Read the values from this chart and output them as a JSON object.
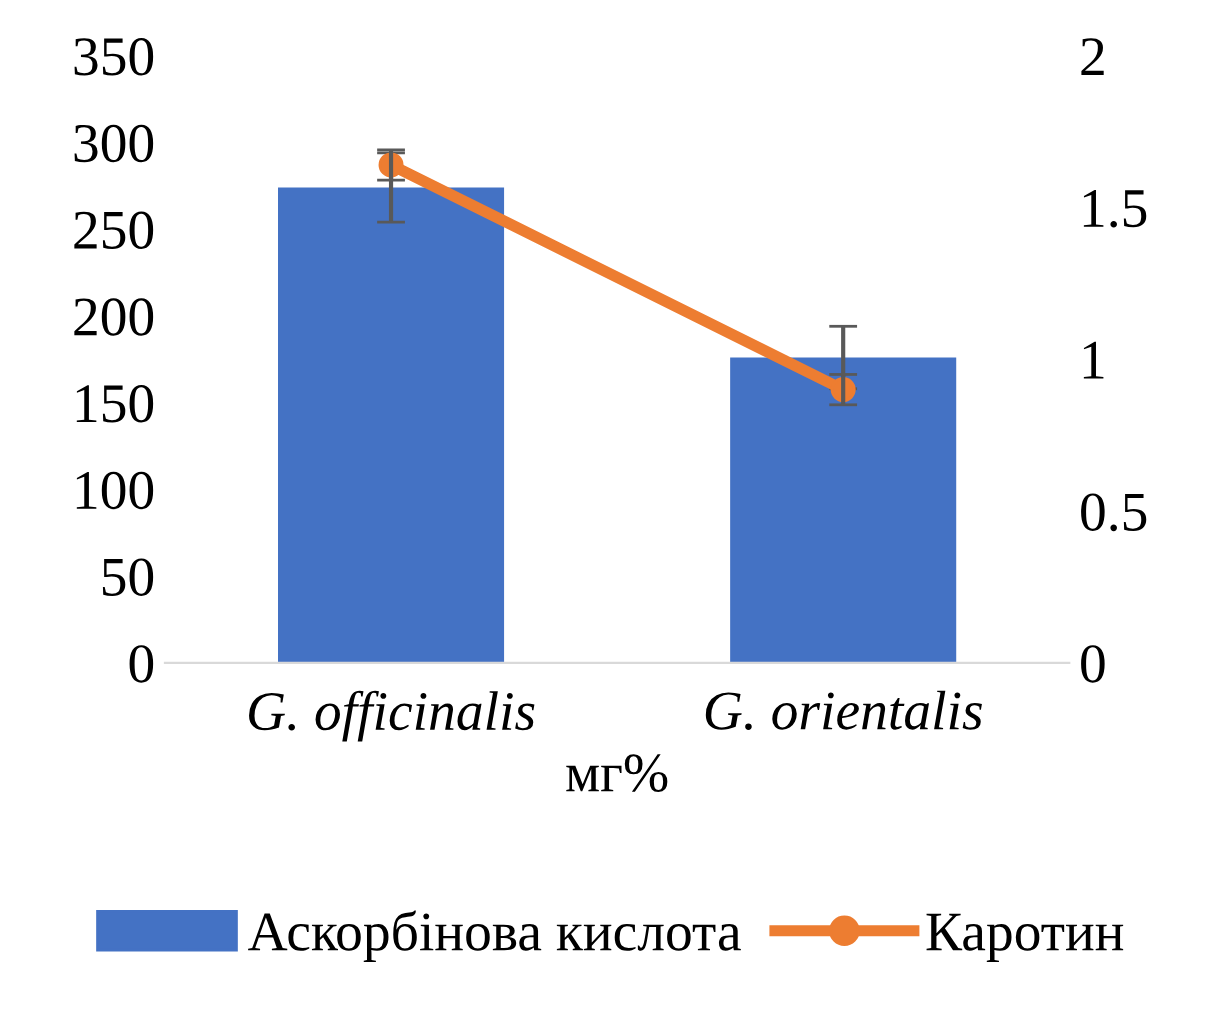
{
  "chart_data": {
    "type": "bar",
    "xlabel": "мг%",
    "categories": [
      "G. officinalis",
      "G. orientalis"
    ],
    "series": [
      {
        "name": "Аскорбінова кислота",
        "color": "#4472c4",
        "values": [
          274,
          176
        ],
        "errors": [
          20,
          18
        ]
      },
      {
        "name": "Каротин",
        "type": "line",
        "axis": "y2",
        "color": "#ed7d31",
        "values": [
          1.64,
          0.9
        ],
        "errors": [
          0.05,
          0.05
        ],
        "marker": "circle"
      }
    ],
    "ylim": [
      0,
      350
    ],
    "yticks": [
      0,
      50,
      100,
      150,
      200,
      250,
      300,
      350
    ],
    "y2lim": [
      0,
      2
    ],
    "y2ticks": [
      0,
      0.5,
      1,
      1.5,
      2
    ],
    "grid": false,
    "legend": "bottom"
  }
}
